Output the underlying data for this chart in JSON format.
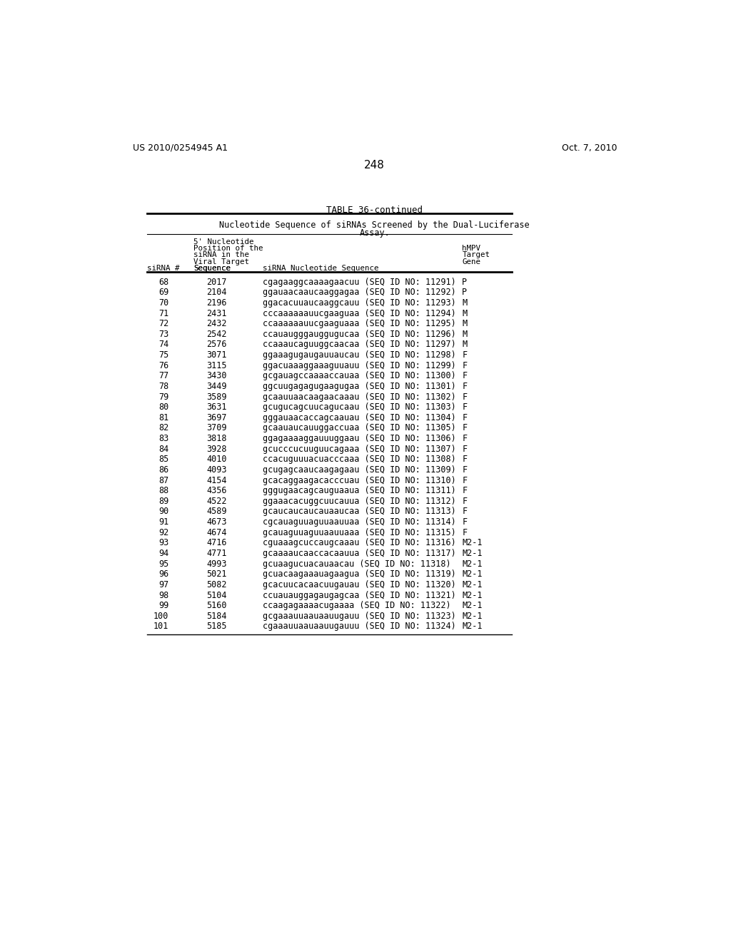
{
  "page_number": "248",
  "left_header": "US 2010/0254945 A1",
  "right_header": "Oct. 7, 2010",
  "table_title": "TABLE 36-continued",
  "table_subtitle_line1": "Nucleotide Sequence of siRNAs Screened by the Dual-Luciferase",
  "table_subtitle_line2": "Assay.",
  "rows": [
    [
      68,
      2017,
      "cgagaaggcaaaagaacuu",
      11291,
      "P"
    ],
    [
      69,
      2104,
      "ggauaacaaucaaggagaa",
      11292,
      "P"
    ],
    [
      70,
      2196,
      "ggacacuuaucaaggcauu",
      11293,
      "M"
    ],
    [
      71,
      2431,
      "cccaaaaaauucgaaguaa",
      11294,
      "M"
    ],
    [
      72,
      2432,
      "ccaaaaaauucgaaguaaa",
      11295,
      "M"
    ],
    [
      73,
      2542,
      "ccauaugggauggugucaa",
      11296,
      "M"
    ],
    [
      74,
      2576,
      "ccaaaucaguuggcaacaa",
      11297,
      "M"
    ],
    [
      75,
      3071,
      "ggaaagugaugauuaucau",
      11298,
      "F"
    ],
    [
      76,
      3115,
      "ggacuaaaggaaaguuauu",
      11299,
      "F"
    ],
    [
      77,
      3430,
      "gcgauagccaaaaccauaa",
      11300,
      "F"
    ],
    [
      78,
      3449,
      "ggcuugagagugaagugaa",
      11301,
      "F"
    ],
    [
      79,
      3589,
      "gcaauuaacaagaacaaau",
      11302,
      "F"
    ],
    [
      80,
      3631,
      "gcugucagcuucagucaau",
      11303,
      "F"
    ],
    [
      81,
      3697,
      "gggauaacaccagcaauau",
      11304,
      "F"
    ],
    [
      82,
      3709,
      "gcaauaucauuggaccuaa",
      11305,
      "F"
    ],
    [
      83,
      3818,
      "ggagaaaaggauuuggaau",
      11306,
      "F"
    ],
    [
      84,
      3928,
      "gcucccucuuguucagaaa",
      11307,
      "F"
    ],
    [
      85,
      4010,
      "ccacuguuuacuacccaaa",
      11308,
      "F"
    ],
    [
      86,
      4093,
      "gcugagcaaucaagagaau",
      11309,
      "F"
    ],
    [
      87,
      4154,
      "gcacaggaagacacccuau",
      11310,
      "F"
    ],
    [
      88,
      4356,
      "gggugaacagcauguaaua",
      11311,
      "F"
    ],
    [
      89,
      4522,
      "ggaaacacuggcuucauua",
      11312,
      "F"
    ],
    [
      90,
      4589,
      "gcaucaucaucauaaucaa",
      11313,
      "F"
    ],
    [
      91,
      4673,
      "cgcauaguuaguuaauuaa",
      11314,
      "F"
    ],
    [
      92,
      4674,
      "gcauaguuaguuaauuaaa",
      11315,
      "F"
    ],
    [
      93,
      4716,
      "cguaaagcuccaugcaaau",
      11316,
      "M2-1"
    ],
    [
      94,
      4771,
      "gcaaaaucaaccacaauua",
      11317,
      "M2-1"
    ],
    [
      95,
      4993,
      "gcuaagucuacauaacau",
      11318,
      "M2-1"
    ],
    [
      96,
      5021,
      "gcuacaagaaauagaagua",
      11319,
      "M2-1"
    ],
    [
      97,
      5082,
      "gcacuucacaacuugauau",
      11320,
      "M2-1"
    ],
    [
      98,
      5104,
      "ccuauauggagaugagcaa",
      11321,
      "M2-1"
    ],
    [
      99,
      5160,
      "ccaagagaaaacugaaaa",
      11322,
      "M2-1"
    ],
    [
      100,
      5184,
      "gcgaaauuaauaauugauu",
      11323,
      "M2-1"
    ],
    [
      101,
      5185,
      "cgaaauuaauaauugauuu",
      11324,
      "M2-1"
    ]
  ],
  "background_color": "#ffffff",
  "text_color": "#000000"
}
